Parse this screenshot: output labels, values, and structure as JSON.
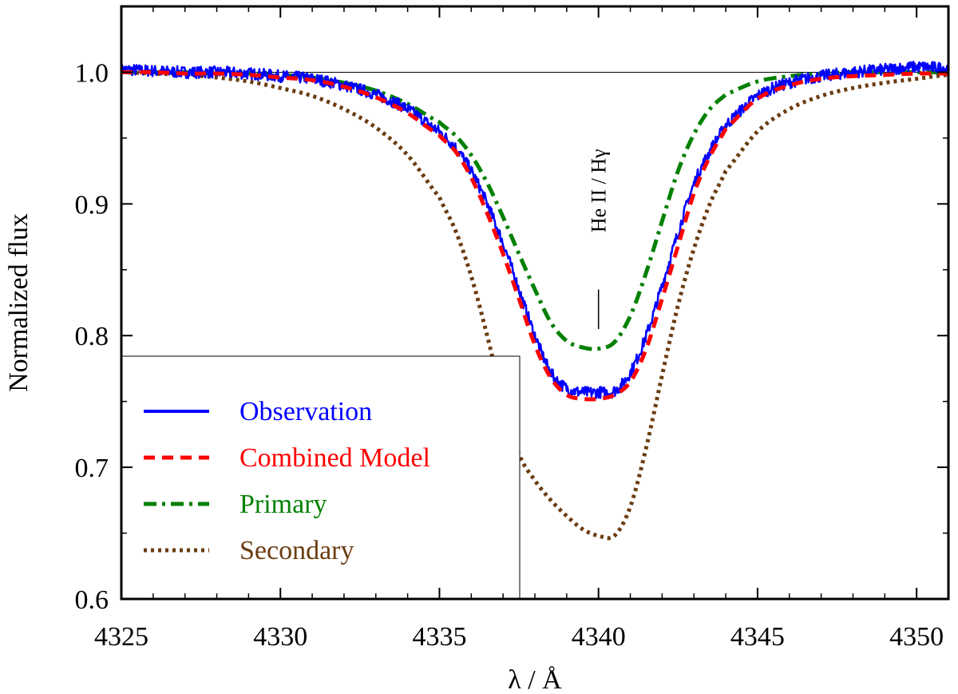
{
  "chart_data": {
    "type": "line",
    "xlabel": "λ / Å",
    "ylabel": "Normalized flux",
    "xlim": [
      4325,
      4351
    ],
    "ylim": [
      0.6,
      1.05
    ],
    "x_ticks": [
      4325,
      4330,
      4335,
      4340,
      4345,
      4350
    ],
    "x_tick_labels": [
      "4325",
      "4330",
      "4335",
      "4340",
      "4345",
      "4350"
    ],
    "y_ticks": [
      0.6,
      0.7,
      0.8,
      0.9,
      1.0
    ],
    "y_tick_labels": [
      "0.6",
      "0.7",
      "0.8",
      "0.9",
      "1.0"
    ],
    "continuum": 1.0,
    "annotation": {
      "text": "He II / Hγ",
      "x": 4340.0,
      "y_from": 0.805,
      "y_to": 0.835
    },
    "legend_position": "bottom-left",
    "series": [
      {
        "name": "Observation",
        "color": "#0000ff",
        "style": "solid",
        "x": [
          4325,
          4326,
          4327,
          4328,
          4329,
          4330,
          4331,
          4332,
          4333,
          4334,
          4335,
          4335.5,
          4336,
          4336.5,
          4337,
          4337.5,
          4338,
          4338.5,
          4339,
          4339.5,
          4340,
          4340.5,
          4341,
          4341.5,
          4342,
          4342.5,
          4343,
          4343.5,
          4344,
          4345,
          4346,
          4347,
          4348,
          4349,
          4350,
          4351
        ],
        "y": [
          1.002,
          1.001,
          1.0,
          1.0,
          0.999,
          0.997,
          0.995,
          0.99,
          0.983,
          0.972,
          0.955,
          0.943,
          0.925,
          0.9,
          0.87,
          0.835,
          0.8,
          0.772,
          0.76,
          0.757,
          0.757,
          0.758,
          0.772,
          0.8,
          0.838,
          0.878,
          0.915,
          0.94,
          0.96,
          0.982,
          0.992,
          0.997,
          1.0,
          1.002,
          1.004,
          1.003
        ]
      },
      {
        "name": "Combined Model",
        "color": "#ff0000",
        "style": "dashed",
        "x": [
          4325,
          4326,
          4327,
          4328,
          4329,
          4330,
          4331,
          4332,
          4333,
          4334,
          4335,
          4335.5,
          4336,
          4336.5,
          4337,
          4337.5,
          4338,
          4338.5,
          4339,
          4339.5,
          4340,
          4340.5,
          4341,
          4341.5,
          4342,
          4342.5,
          4343,
          4343.5,
          4344,
          4345,
          4346,
          4347,
          4348,
          4349,
          4350,
          4351
        ],
        "y": [
          1.0,
          1.0,
          0.999,
          0.999,
          0.998,
          0.996,
          0.994,
          0.989,
          0.981,
          0.969,
          0.952,
          0.94,
          0.92,
          0.893,
          0.862,
          0.828,
          0.793,
          0.768,
          0.755,
          0.752,
          0.752,
          0.755,
          0.765,
          0.79,
          0.828,
          0.868,
          0.908,
          0.936,
          0.957,
          0.98,
          0.99,
          0.995,
          0.997,
          0.998,
          0.999,
          0.999
        ]
      },
      {
        "name": "Primary",
        "color": "#008000",
        "style": "dashdot",
        "x": [
          4325,
          4326,
          4327,
          4328,
          4329,
          4330,
          4331,
          4332,
          4333,
          4334,
          4335,
          4335.5,
          4336,
          4336.5,
          4337,
          4337.5,
          4338,
          4338.5,
          4339,
          4339.5,
          4340,
          4340.5,
          4341,
          4341.5,
          4342,
          4342.5,
          4343,
          4343.5,
          4344,
          4345,
          4346,
          4347,
          4348,
          4349,
          4350,
          4351
        ],
        "y": [
          1.0,
          1.0,
          1.0,
          0.999,
          0.999,
          0.998,
          0.996,
          0.992,
          0.986,
          0.976,
          0.962,
          0.952,
          0.937,
          0.916,
          0.89,
          0.862,
          0.835,
          0.81,
          0.796,
          0.791,
          0.79,
          0.795,
          0.815,
          0.848,
          0.887,
          0.925,
          0.953,
          0.972,
          0.983,
          0.993,
          0.997,
          0.999,
          1.0,
          1.0,
          1.0,
          1.0
        ]
      },
      {
        "name": "Secondary",
        "color": "#6b3c10",
        "style": "dotted",
        "x": [
          4325,
          4326,
          4327,
          4328,
          4329,
          4330,
          4331,
          4332,
          4333,
          4334,
          4335,
          4335.5,
          4336,
          4336.5,
          4337,
          4337.5,
          4338,
          4338.5,
          4339,
          4339.5,
          4340,
          4340.5,
          4341,
          4341.5,
          4342,
          4342.5,
          4343,
          4343.5,
          4344,
          4345,
          4346,
          4347,
          4348,
          4349,
          4350,
          4351
        ],
        "y": [
          1.0,
          0.999,
          0.998,
          0.996,
          0.993,
          0.988,
          0.982,
          0.972,
          0.958,
          0.937,
          0.905,
          0.88,
          0.845,
          0.8,
          0.75,
          0.71,
          0.69,
          0.675,
          0.663,
          0.653,
          0.648,
          0.648,
          0.67,
          0.715,
          0.77,
          0.823,
          0.866,
          0.9,
          0.925,
          0.955,
          0.972,
          0.982,
          0.988,
          0.992,
          0.995,
          0.998
        ]
      }
    ]
  }
}
